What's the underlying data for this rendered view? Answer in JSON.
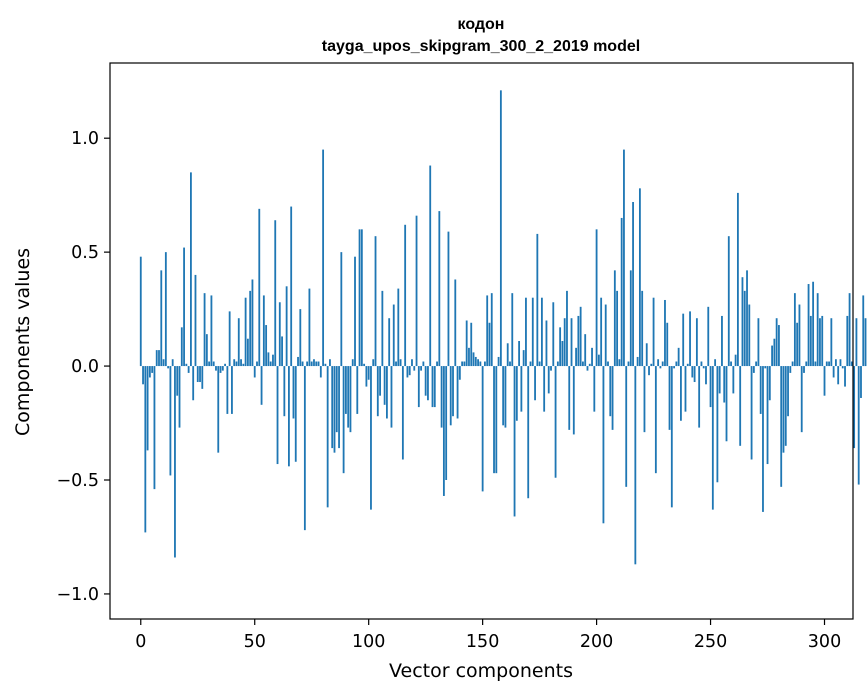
{
  "chart_data": {
    "type": "bar",
    "title": "кодон",
    "subtitle": "tayga_upos_skipgram_300_2_2019 model",
    "xlabel": "Vector components",
    "ylabel": "Components values",
    "xlim": [
      -13.5,
      312.5
    ],
    "ylim": [
      -1.11,
      1.33
    ],
    "xticks": [
      0,
      50,
      100,
      150,
      200,
      250,
      300
    ],
    "yticks": [
      -1.0,
      -0.5,
      0.0,
      0.5,
      1.0
    ],
    "ytick_labels": [
      "−1.0",
      "−0.5",
      "0.0",
      "0.5",
      "1.0"
    ],
    "bar_color": "#1f77b4",
    "grid": false,
    "values": [
      0.48,
      -0.08,
      -0.73,
      -0.37,
      -0.05,
      -0.03,
      -0.54,
      0.07,
      0.07,
      0.42,
      0.03,
      0.5,
      -0.01,
      -0.48,
      0.03,
      -0.84,
      -0.13,
      -0.27,
      0.17,
      0.52,
      0.01,
      -0.03,
      0.85,
      -0.15,
      0.4,
      -0.07,
      -0.07,
      -0.1,
      0.32,
      0.14,
      0.02,
      0.31,
      0.02,
      -0.02,
      -0.38,
      -0.03,
      -0.02,
      0.01,
      -0.21,
      0.24,
      -0.21,
      0.03,
      0.02,
      0.21,
      0.03,
      0.01,
      0.3,
      0.12,
      0.33,
      0.38,
      -0.05,
      0.02,
      0.69,
      -0.17,
      0.31,
      0.18,
      0.06,
      0.02,
      0.05,
      0.64,
      -0.43,
      0.28,
      0.13,
      -0.22,
      0.35,
      -0.44,
      0.7,
      -0.23,
      -0.42,
      0.04,
      0.25,
      0.02,
      -0.72,
      0.02,
      0.34,
      0.02,
      0.03,
      0.02,
      0.02,
      -0.05,
      0.95,
      0.01,
      -0.62,
      0.03,
      -0.36,
      -0.38,
      -0.29,
      -0.36,
      0.5,
      -0.47,
      -0.21,
      -0.27,
      -0.29,
      0.03,
      0.48,
      -0.21,
      0.6,
      0.6,
      0.01,
      -0.09,
      -0.06,
      -0.63,
      0.03,
      0.57,
      -0.22,
      -0.13,
      0.33,
      -0.17,
      -0.23,
      0.21,
      -0.27,
      0.27,
      0.02,
      0.34,
      0.03,
      -0.41,
      0.62,
      -0.05,
      -0.04,
      0.03,
      -0.02,
      0.66,
      -0.18,
      -0.02,
      0.02,
      -0.13,
      -0.15,
      0.88,
      -0.18,
      -0.18,
      0.02,
      0.68,
      -0.27,
      -0.57,
      -0.5,
      0.59,
      -0.26,
      -0.22,
      0.38,
      -0.23,
      -0.06,
      0.02,
      0.02,
      0.2,
      0.08,
      0.19,
      0.06,
      0.04,
      0.03,
      0.02,
      -0.55,
      0.02,
      0.31,
      0.19,
      0.32,
      -0.47,
      -0.47,
      0.04,
      1.21,
      -0.26,
      -0.27,
      0.1,
      0.02,
      0.32,
      -0.66,
      -0.24,
      0.11,
      -0.2,
      0.07,
      0.3,
      -0.58,
      0.02,
      0.3,
      -0.15,
      0.58,
      0.02,
      0.3,
      -0.2,
      0.2,
      -0.12,
      -0.02,
      0.28,
      -0.49,
      0.02,
      0.17,
      0.11,
      0.21,
      0.33,
      -0.28,
      0.21,
      -0.3,
      0.08,
      0.22,
      0.26,
      0.02,
      0.14,
      -0.02,
      0.01,
      0.08,
      -0.2,
      0.6,
      0.05,
      0.3,
      -0.69,
      0.27,
      0.02,
      -0.22,
      -0.28,
      0.42,
      0.33,
      0.03,
      0.65,
      0.95,
      -0.53,
      0.02,
      0.42,
      0.72,
      -0.87,
      0.04,
      0.78,
      0.33,
      -0.29,
      0.1,
      -0.04,
      0.01,
      0.3,
      -0.47,
      0.03,
      -0.01,
      0.02,
      0.29,
      0.19,
      -0.28,
      -0.62,
      -0.01,
      0.02,
      0.08,
      -0.24,
      0.23,
      -0.2,
      0.01,
      0.24,
      -0.05,
      -0.07,
      0.21,
      -0.27,
      0.02,
      -0.01,
      -0.08,
      0.26,
      -0.18,
      -0.63,
      0.03,
      -0.51,
      -0.12,
      0.22,
      -0.16,
      -0.33,
      0.57,
      0.02,
      -0.12,
      0.05,
      0.76,
      -0.35,
      0.39,
      0.33,
      0.42,
      0.27,
      -0.41,
      -0.03,
      0.02,
      0.21,
      -0.21,
      -0.64,
      -0.01,
      -0.43,
      -0.15,
      0.09,
      0.12,
      0.21,
      0.18,
      -0.53,
      -0.38,
      -0.35,
      -0.22,
      -0.03,
      0.02,
      0.32,
      0.19,
      0.27,
      -0.29,
      -0.03,
      0.02,
      0.36,
      0.22,
      0.37,
      0.02,
      0.32,
      0.21,
      0.22,
      -0.13,
      0.02,
      0.02,
      0.21,
      -0.05,
      0.03,
      -0.08,
      0.03,
      -0.01,
      -0.09,
      0.22,
      0.32,
      0.02,
      -0.36,
      0.21,
      -0.52,
      -0.14,
      0.31,
      0.21
    ]
  }
}
